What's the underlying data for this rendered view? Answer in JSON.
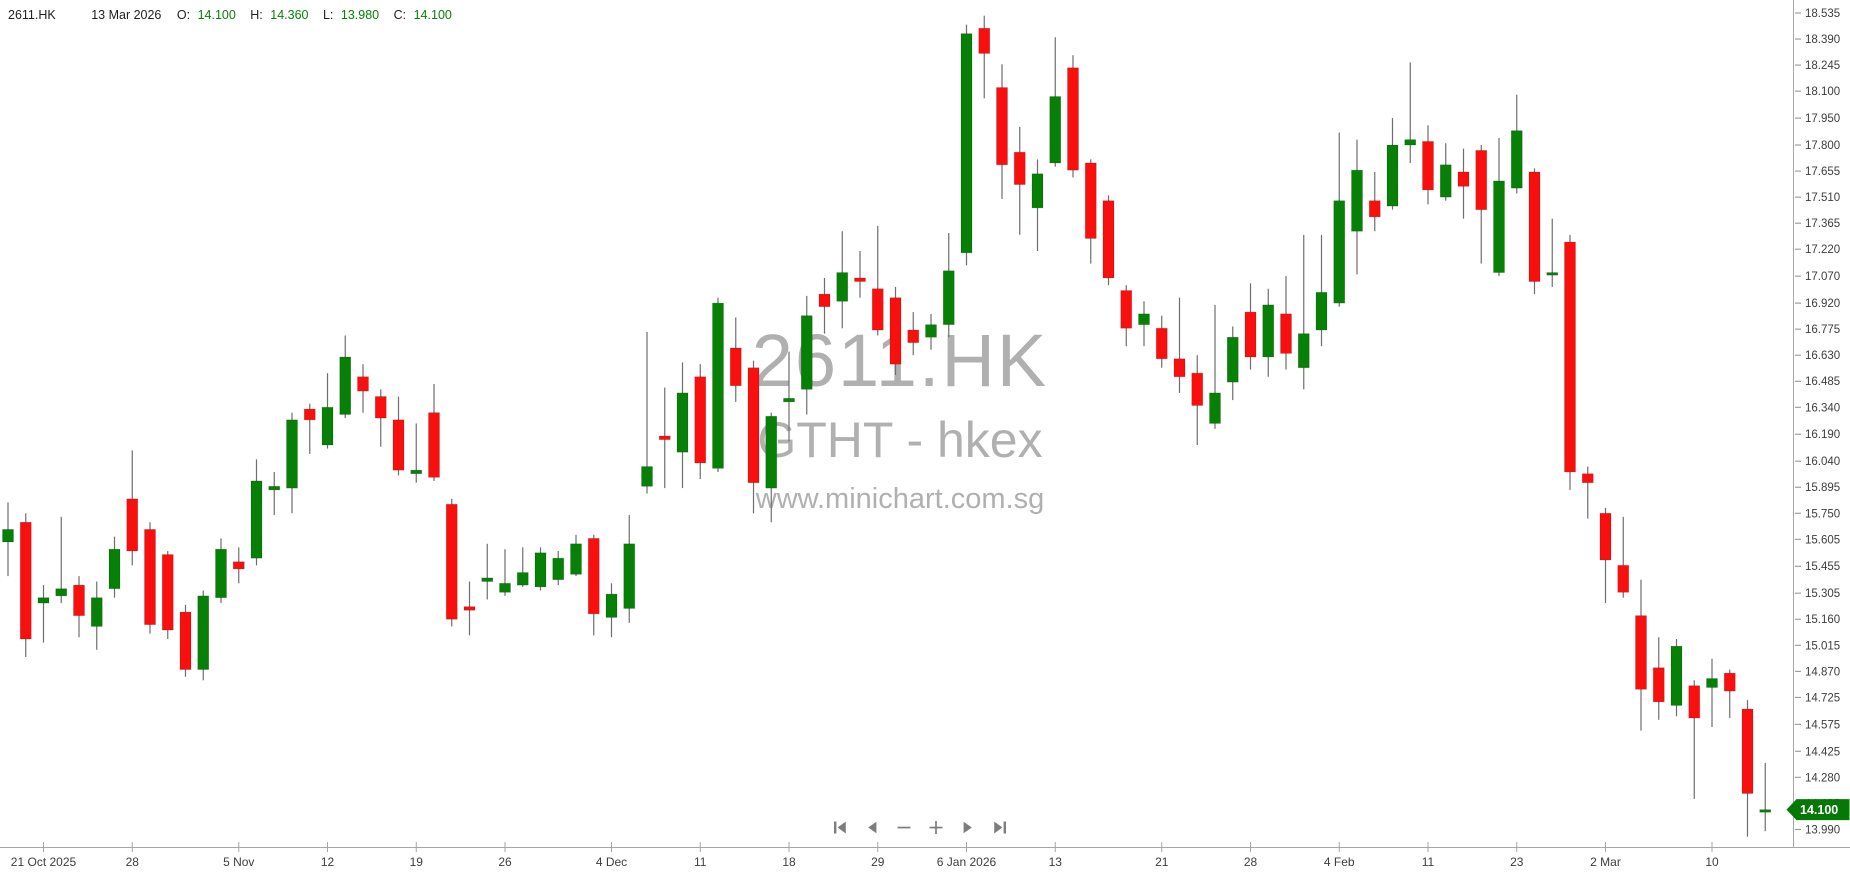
{
  "header": {
    "symbol": "2611.HK",
    "date": "13 Mar 2026",
    "o_label": "O:",
    "o_value": "14.100",
    "h_label": "H:",
    "h_value": "14.360",
    "l_label": "L:",
    "l_value": "13.980",
    "c_label": "C:",
    "c_value": "14.100"
  },
  "watermark": {
    "line1": "2611.HK",
    "line2": "GTHT - hkex",
    "line3": "www.minichart.com.sg"
  },
  "last_price_tag": {
    "value": "14.100"
  },
  "nav": {
    "icons": [
      "skip-start-icon",
      "step-back-icon",
      "zoom-out-icon",
      "zoom-in-icon",
      "step-forward-icon",
      "skip-end-icon"
    ]
  },
  "colors": {
    "up": "#078007",
    "down": "#fa0f0f",
    "wick": "#6e6e6e",
    "axis_line": "#a6a6a6",
    "axis_text": "#3d3d3d",
    "tag_bg": "#067806",
    "tag_text": "#ffffff",
    "watermark": "#b0b0b0",
    "nav": "#7d7d7d",
    "header_value": "#078007"
  },
  "chart_data": {
    "type": "candlestick",
    "title": "2611.HK",
    "ylim": [
      13.99,
      18.535
    ],
    "grid": false,
    "legend_position": "top-left",
    "price_axis": [
      "18.535",
      "18.390",
      "18.245",
      "18.100",
      "17.950",
      "17.800",
      "17.655",
      "17.510",
      "17.365",
      "17.220",
      "17.070",
      "16.920",
      "16.775",
      "16.630",
      "16.485",
      "16.340",
      "16.190",
      "16.040",
      "15.895",
      "15.750",
      "15.605",
      "15.455",
      "15.305",
      "15.160",
      "15.015",
      "14.870",
      "14.725",
      "14.575",
      "14.425",
      "14.280",
      "14.135",
      "13.990"
    ],
    "date_ticks": [
      {
        "index": 2,
        "label": "21 Oct 2025"
      },
      {
        "index": 7,
        "label": "28"
      },
      {
        "index": 13,
        "label": "5 Nov"
      },
      {
        "index": 18,
        "label": "12"
      },
      {
        "index": 23,
        "label": "19"
      },
      {
        "index": 28,
        "label": "26"
      },
      {
        "index": 34,
        "label": "4 Dec"
      },
      {
        "index": 39,
        "label": "11"
      },
      {
        "index": 44,
        "label": "18"
      },
      {
        "index": 49,
        "label": "29"
      },
      {
        "index": 54,
        "label": "6 Jan 2026"
      },
      {
        "index": 59,
        "label": "13"
      },
      {
        "index": 65,
        "label": "21"
      },
      {
        "index": 70,
        "label": "28"
      },
      {
        "index": 75,
        "label": "4 Feb"
      },
      {
        "index": 80,
        "label": "11"
      },
      {
        "index": 85,
        "label": "23"
      },
      {
        "index": 90,
        "label": "2 Mar"
      },
      {
        "index": 96,
        "label": "10"
      }
    ],
    "candles_format": [
      "open",
      "high",
      "low",
      "close"
    ],
    "candles": [
      [
        15.59,
        15.81,
        15.4,
        15.66
      ],
      [
        15.7,
        15.75,
        14.95,
        15.05
      ],
      [
        15.25,
        15.35,
        15.03,
        15.28
      ],
      [
        15.29,
        15.73,
        15.25,
        15.33
      ],
      [
        15.35,
        15.4,
        15.06,
        15.18
      ],
      [
        15.12,
        15.37,
        14.99,
        15.28
      ],
      [
        15.33,
        15.62,
        15.28,
        15.55
      ],
      [
        15.83,
        16.1,
        15.46,
        15.54
      ],
      [
        15.66,
        15.7,
        15.08,
        15.13
      ],
      [
        15.52,
        15.54,
        15.05,
        15.1
      ],
      [
        15.2,
        15.24,
        14.84,
        14.88
      ],
      [
        14.88,
        15.32,
        14.82,
        15.29
      ],
      [
        15.28,
        15.61,
        15.25,
        15.55
      ],
      [
        15.48,
        15.56,
        15.36,
        15.44
      ],
      [
        15.5,
        16.05,
        15.46,
        15.93
      ],
      [
        15.88,
        15.98,
        15.74,
        15.9
      ],
      [
        15.89,
        16.31,
        15.75,
        16.27
      ],
      [
        16.33,
        16.36,
        16.08,
        16.27
      ],
      [
        16.13,
        16.53,
        16.11,
        16.34
      ],
      [
        16.3,
        16.74,
        16.28,
        16.62
      ],
      [
        16.51,
        16.58,
        16.31,
        16.43
      ],
      [
        16.4,
        16.44,
        16.12,
        16.28
      ],
      [
        16.27,
        16.4,
        15.96,
        15.99
      ],
      [
        15.97,
        16.25,
        15.92,
        15.99
      ],
      [
        16.31,
        16.47,
        15.93,
        15.95
      ],
      [
        15.8,
        15.83,
        15.12,
        15.16
      ],
      [
        15.23,
        15.37,
        15.07,
        15.21
      ],
      [
        15.37,
        15.58,
        15.27,
        15.39
      ],
      [
        15.31,
        15.55,
        15.29,
        15.36
      ],
      [
        15.35,
        15.56,
        15.34,
        15.42
      ],
      [
        15.34,
        15.56,
        15.32,
        15.53
      ],
      [
        15.38,
        15.54,
        15.35,
        15.5
      ],
      [
        15.41,
        15.63,
        15.4,
        15.58
      ],
      [
        15.61,
        15.63,
        15.07,
        15.19
      ],
      [
        15.17,
        15.36,
        15.06,
        15.3
      ],
      [
        15.22,
        15.74,
        15.14,
        15.58
      ],
      [
        15.9,
        16.76,
        15.86,
        16.01
      ],
      [
        16.18,
        16.45,
        15.89,
        16.16
      ],
      [
        16.09,
        16.59,
        15.89,
        16.42
      ],
      [
        16.51,
        16.58,
        15.94,
        16.03
      ],
      [
        16.0,
        16.95,
        15.98,
        16.92
      ],
      [
        16.67,
        16.84,
        16.37,
        16.46
      ],
      [
        16.56,
        16.6,
        15.75,
        15.92
      ],
      [
        15.89,
        16.31,
        15.7,
        16.29
      ],
      [
        16.37,
        16.65,
        16.15,
        16.39
      ],
      [
        16.44,
        16.96,
        16.3,
        16.85
      ],
      [
        16.97,
        17.06,
        16.75,
        16.9
      ],
      [
        16.93,
        17.32,
        16.78,
        17.09
      ],
      [
        17.06,
        17.21,
        16.95,
        17.04
      ],
      [
        17.0,
        17.35,
        16.74,
        16.77
      ],
      [
        16.95,
        17.01,
        16.52,
        16.58
      ],
      [
        16.77,
        16.87,
        16.63,
        16.7
      ],
      [
        16.73,
        16.86,
        16.66,
        16.8
      ],
      [
        16.8,
        17.31,
        16.73,
        17.1
      ],
      [
        17.2,
        18.47,
        17.13,
        18.42
      ],
      [
        18.45,
        18.52,
        18.06,
        18.31
      ],
      [
        18.12,
        18.25,
        17.5,
        17.69
      ],
      [
        17.76,
        17.9,
        17.3,
        17.58
      ],
      [
        17.45,
        17.72,
        17.21,
        17.64
      ],
      [
        17.7,
        18.4,
        17.68,
        18.07
      ],
      [
        18.23,
        18.3,
        17.62,
        17.66
      ],
      [
        17.7,
        17.72,
        17.14,
        17.28
      ],
      [
        17.49,
        17.52,
        17.02,
        17.06
      ],
      [
        16.99,
        17.02,
        16.68,
        16.78
      ],
      [
        16.8,
        16.93,
        16.68,
        16.86
      ],
      [
        16.78,
        16.85,
        16.56,
        16.61
      ],
      [
        16.61,
        16.95,
        16.42,
        16.51
      ],
      [
        16.53,
        16.63,
        16.13,
        16.35
      ],
      [
        16.25,
        16.91,
        16.22,
        16.42
      ],
      [
        16.48,
        16.79,
        16.38,
        16.73
      ],
      [
        16.87,
        17.03,
        16.55,
        16.62
      ],
      [
        16.62,
        17.0,
        16.51,
        16.91
      ],
      [
        16.86,
        17.07,
        16.55,
        16.64
      ],
      [
        16.56,
        17.3,
        16.44,
        16.75
      ],
      [
        16.77,
        17.3,
        16.68,
        16.98
      ],
      [
        16.92,
        17.87,
        16.9,
        17.49
      ],
      [
        17.32,
        17.83,
        17.08,
        17.66
      ],
      [
        17.49,
        17.65,
        17.32,
        17.4
      ],
      [
        17.46,
        17.95,
        17.44,
        17.8
      ],
      [
        17.8,
        18.26,
        17.7,
        17.83
      ],
      [
        17.82,
        17.91,
        17.47,
        17.55
      ],
      [
        17.51,
        17.81,
        17.49,
        17.69
      ],
      [
        17.65,
        17.78,
        17.39,
        17.57
      ],
      [
        17.77,
        17.8,
        17.14,
        17.44
      ],
      [
        17.09,
        17.84,
        17.07,
        17.6
      ],
      [
        17.56,
        18.08,
        17.53,
        17.88
      ],
      [
        17.65,
        17.67,
        16.97,
        17.04
      ],
      [
        17.08,
        17.39,
        17.01,
        17.09
      ],
      [
        17.26,
        17.3,
        15.88,
        15.98
      ],
      [
        15.97,
        16.01,
        15.72,
        15.92
      ],
      [
        15.75,
        15.78,
        15.25,
        15.49
      ],
      [
        15.46,
        15.73,
        15.28,
        15.31
      ],
      [
        15.18,
        15.38,
        14.54,
        14.77
      ],
      [
        14.89,
        15.06,
        14.6,
        14.7
      ],
      [
        14.68,
        15.05,
        14.62,
        15.01
      ],
      [
        14.79,
        14.82,
        14.16,
        14.61
      ],
      [
        14.78,
        14.94,
        14.56,
        14.83
      ],
      [
        14.86,
        14.88,
        14.61,
        14.76
      ],
      [
        14.66,
        14.71,
        13.95,
        14.19
      ],
      [
        14.1,
        14.36,
        13.98,
        14.1
      ]
    ]
  }
}
